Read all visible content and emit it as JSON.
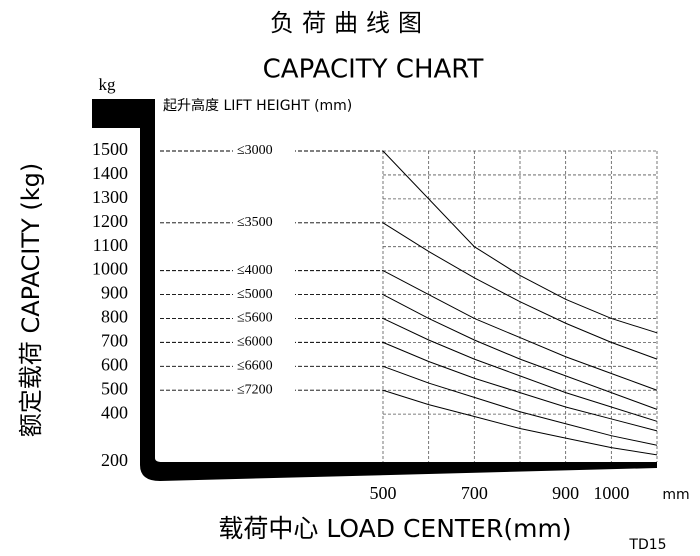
{
  "chart_data": {
    "type": "line",
    "title": "负荷曲线图",
    "subtitle": "CAPACITY CHART",
    "y_unit": "kg",
    "y_label": "额定载荷 CAPACITY (kg)",
    "legend_title": "起升高度 LIFT HEIGHT (mm)",
    "x_unit": "mm",
    "x_label": "载荷中心 LOAD CENTER(mm)",
    "code": "TD15",
    "x": [
      500,
      600,
      700,
      800,
      900,
      1000,
      1100
    ],
    "xlim": [
      500,
      1100
    ],
    "xticks": [
      500,
      700,
      900,
      1000
    ],
    "ylim": [
      200,
      1500
    ],
    "yticks": [
      200,
      400,
      500,
      600,
      700,
      800,
      900,
      1000,
      1100,
      1200,
      1300,
      1400,
      1500
    ],
    "grid": true,
    "color": "#000000",
    "series": [
      {
        "name": "≤3000",
        "values": [
          1500,
          1300,
          1100,
          980,
          880,
          800,
          740
        ]
      },
      {
        "name": "≤3500",
        "values": [
          1200,
          1080,
          970,
          870,
          780,
          700,
          630
        ]
      },
      {
        "name": "≤4000",
        "values": [
          1000,
          900,
          800,
          720,
          640,
          570,
          500
        ]
      },
      {
        "name": "≤5000",
        "values": [
          900,
          800,
          710,
          630,
          560,
          490,
          420
        ]
      },
      {
        "name": "≤5600",
        "values": [
          800,
          710,
          630,
          560,
          490,
          430,
          370
        ]
      },
      {
        "name": "≤6000",
        "values": [
          700,
          620,
          550,
          490,
          430,
          380,
          330
        ]
      },
      {
        "name": "≤6600",
        "values": [
          600,
          530,
          470,
          410,
          360,
          310,
          270
        ]
      },
      {
        "name": "≤7200",
        "values": [
          500,
          440,
          390,
          340,
          300,
          260,
          230
        ]
      }
    ]
  }
}
